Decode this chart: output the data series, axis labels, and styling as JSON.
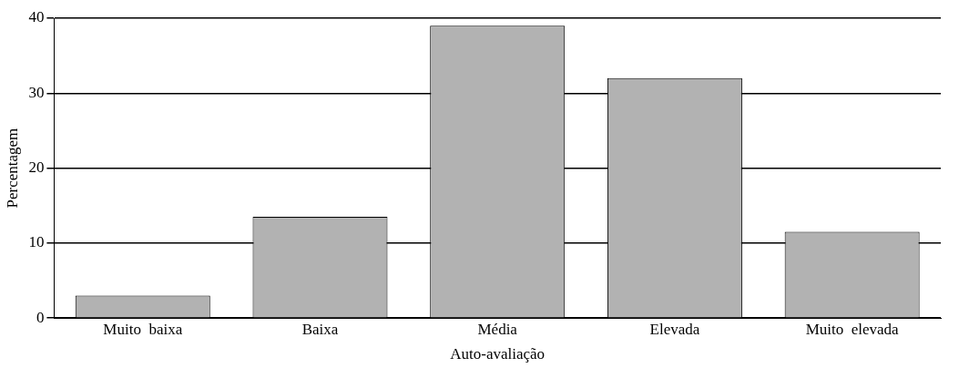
{
  "chart_data": {
    "type": "bar",
    "xlabel": "Auto-avaliação",
    "ylabel": "Percentagem",
    "categories": [
      "Muito  baixa",
      "Baixa",
      "Média",
      "Elevada",
      "Muito  elevada"
    ],
    "values": [
      3,
      13.5,
      39,
      32,
      11.5
    ],
    "color": "#b2b2b2",
    "ylim": [
      0,
      40
    ],
    "yticks": [
      0,
      10,
      20,
      30,
      40
    ],
    "grid": "y",
    "legend": false
  }
}
